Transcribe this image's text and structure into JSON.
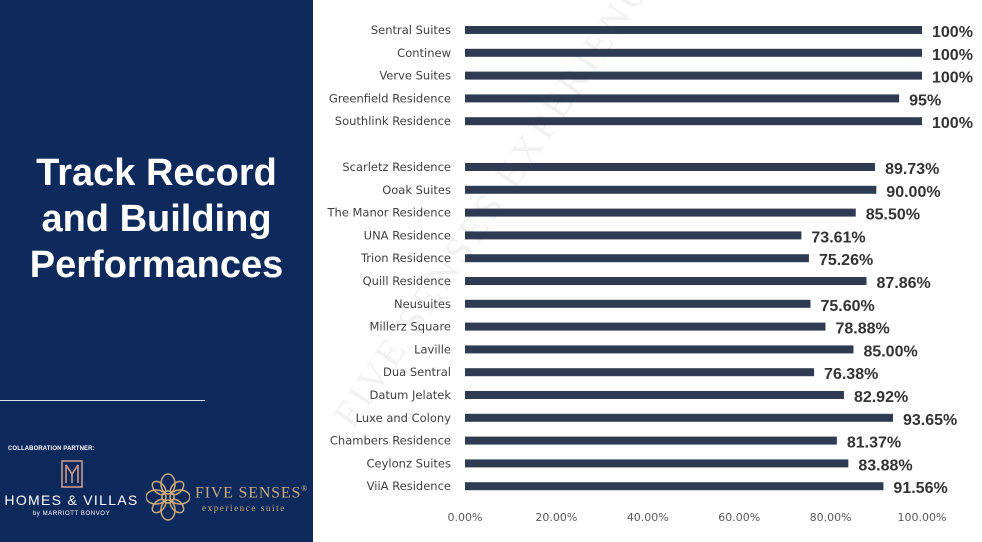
{
  "slide": {
    "title_lines": [
      "Track Record",
      "and Building",
      "Performances"
    ],
    "collab_label": "COLLABORATION PARTNER:",
    "partner1": {
      "brand": "HOMES & VILLAS",
      "sub": "by MARRIOTT BONVOY",
      "icon": "hv-monogram-icon"
    },
    "partner2": {
      "brand": "FIVE SENSES",
      "reg": "®",
      "sub": "experience suite",
      "icon": "flower-emblem-icon"
    },
    "watermark": "FIVE SENSES EXPERIENCE SUITES",
    "colors": {
      "panel": "#0e2a5c",
      "bar": "#2f3b52",
      "gold": "#c8a97a"
    }
  },
  "chart_data": {
    "type": "bar",
    "orientation": "horizontal",
    "groups": [
      {
        "categories": [
          "Sentral Suites",
          "Continew",
          "Verve Suites",
          "Greenfield Residence",
          "Southlink Residence"
        ],
        "values": [
          100,
          100,
          100,
          95,
          100
        ],
        "labels": [
          "100%",
          "100%",
          "100%",
          "95%",
          "100%"
        ]
      },
      {
        "categories": [
          "Scarletz Residence",
          "Ooak Suites",
          "The Manor Residence",
          "UNA Residence",
          "Trion Residence",
          "Quill Residence",
          "Neusuites",
          "Millerz Square",
          "Laville",
          "Dua Sentral",
          "Datum Jelatek",
          "Luxe and Colony",
          "Chambers Residence",
          "Ceylonz Suites",
          "ViiA Residence"
        ],
        "values": [
          89.73,
          90.0,
          85.5,
          73.61,
          75.26,
          87.86,
          75.6,
          78.88,
          85.0,
          76.38,
          82.92,
          93.65,
          81.37,
          83.88,
          91.56
        ],
        "labels": [
          "89.73%",
          "90.00%",
          "85.50%",
          "73.61%",
          "75.26%",
          "87.86%",
          "75.60%",
          "78.88%",
          "85.00%",
          "76.38%",
          "82.92%",
          "93.65%",
          "81.37%",
          "83.88%",
          "91.56%"
        ]
      }
    ],
    "xlim": [
      0,
      100
    ],
    "xticks": [
      "0.00%",
      "20.00%",
      "40.00%",
      "60.00%",
      "80.00%",
      "100.00%"
    ],
    "xtick_values": [
      0,
      20,
      40,
      60,
      80,
      100
    ],
    "grid": false,
    "legend": "none",
    "title": "",
    "xlabel": "",
    "ylabel": ""
  }
}
